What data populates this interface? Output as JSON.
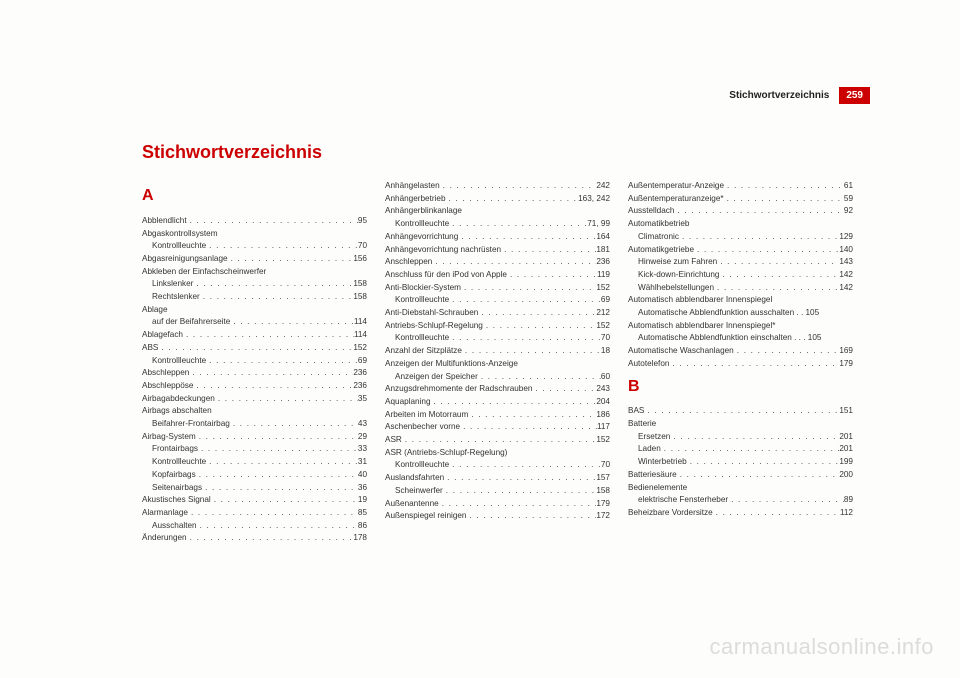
{
  "header": {
    "title": "Stichwortverzeichnis",
    "pageNumber": "259"
  },
  "mainTitle": "Stichwortverzeichnis",
  "watermark": "carmanualsonline.info",
  "columns": [
    {
      "blocks": [
        {
          "type": "letter",
          "text": "A"
        },
        {
          "type": "entries",
          "items": [
            {
              "t": "Abblendlicht",
              "p": "95"
            },
            {
              "t": "Abgaskontrollsystem",
              "nopage": true
            },
            {
              "t": "Kontrollleuchte",
              "p": "70",
              "indent": true
            },
            {
              "t": "Abgasreinigungsanlage",
              "p": "156"
            },
            {
              "t": "Abkleben der Einfachscheinwerfer",
              "nopage": true
            },
            {
              "t": "Linkslenker",
              "p": "158",
              "indent": true
            },
            {
              "t": "Rechtslenker",
              "p": "158",
              "indent": true
            },
            {
              "t": "Ablage",
              "nopage": true
            },
            {
              "t": "auf der Beifahrerseite",
              "p": "114",
              "indent": true
            },
            {
              "t": "Ablagefach",
              "p": "114"
            },
            {
              "t": "ABS",
              "p": "152"
            },
            {
              "t": "Kontrollleuchte",
              "p": "69",
              "indent": true
            },
            {
              "t": "Abschleppen",
              "p": "236"
            },
            {
              "t": "Abschleppöse",
              "p": "236"
            },
            {
              "t": "Airbagabdeckungen",
              "p": "35"
            },
            {
              "t": "Airbags abschalten",
              "nopage": true
            },
            {
              "t": "Beifahrer-Frontairbag",
              "p": "43",
              "indent": true
            },
            {
              "t": "Airbag-System",
              "p": "29"
            },
            {
              "t": "Frontairbags",
              "p": "33",
              "indent": true
            },
            {
              "t": "Kontrollleuchte",
              "p": "31",
              "indent": true
            },
            {
              "t": "Kopfairbags",
              "p": "40",
              "indent": true
            },
            {
              "t": "Seitenairbags",
              "p": "36",
              "indent": true
            },
            {
              "t": "Akustisches Signal",
              "p": "19"
            },
            {
              "t": "Alarmanlage",
              "p": "85"
            },
            {
              "t": "Ausschalten",
              "p": "86",
              "indent": true
            },
            {
              "t": "Änderungen",
              "p": "178"
            }
          ]
        }
      ]
    },
    {
      "blocks": [
        {
          "type": "entries",
          "items": [
            {
              "t": "Anhängelasten",
              "p": "242"
            },
            {
              "t": "Anhängerbetrieb",
              "p": "163, 242"
            },
            {
              "t": "Anhängerblinkanlage",
              "nopage": true
            },
            {
              "t": "Kontrollleuchte",
              "p": "71, 99",
              "indent": true
            },
            {
              "t": "Anhängevorrichtung",
              "p": "164"
            },
            {
              "t": "Anhängevorrichtung nachrüsten",
              "p": "181"
            },
            {
              "t": "Anschleppen",
              "p": "236"
            },
            {
              "t": "Anschluss für den iPod von Apple",
              "p": "119"
            },
            {
              "t": "Anti-Blockier-System",
              "p": "152"
            },
            {
              "t": "Kontrollleuchte",
              "p": "69",
              "indent": true
            },
            {
              "t": "Anti-Diebstahl-Schrauben",
              "p": "212"
            },
            {
              "t": "Antriebs-Schlupf-Regelung",
              "p": "152"
            },
            {
              "t": "Kontrollleuchte",
              "p": "70",
              "indent": true
            },
            {
              "t": "Anzahl der Sitzplätze",
              "p": "18"
            },
            {
              "t": "Anzeigen der Multifunktions-Anzeige",
              "nopage": true
            },
            {
              "t": "Anzeigen der Speicher",
              "p": "60",
              "indent": true
            },
            {
              "t": "Anzugsdrehmomente der Radschrauben",
              "p": "243"
            },
            {
              "t": "Aquaplaning",
              "p": "204"
            },
            {
              "t": "Arbeiten im Motorraum",
              "p": "186"
            },
            {
              "t": "Aschenbecher vorne",
              "p": "117"
            },
            {
              "t": "ASR",
              "p": "152"
            },
            {
              "t": "ASR (Antriebs-Schlupf-Regelung)",
              "nopage": true
            },
            {
              "t": "Kontrollleuchte",
              "p": "70",
              "indent": true
            },
            {
              "t": "Auslandsfahrten",
              "p": "157"
            },
            {
              "t": "Scheinwerfer",
              "p": "158",
              "indent": true
            },
            {
              "t": "Außenantenne",
              "p": "179"
            },
            {
              "t": "Außenspiegel reinigen",
              "p": "172"
            }
          ]
        }
      ]
    },
    {
      "blocks": [
        {
          "type": "entries",
          "items": [
            {
              "t": "Außentemperatur-Anzeige",
              "p": "61"
            },
            {
              "t": "Außentemperaturanzeige*",
              "p": "59"
            },
            {
              "t": "Ausstelldach",
              "p": "92"
            },
            {
              "t": "Automatikbetrieb",
              "nopage": true
            },
            {
              "t": "Climatronic",
              "p": "129",
              "indent": true
            },
            {
              "t": "Automatikgetriebe",
              "p": "140"
            },
            {
              "t": "Hinweise zum Fahren",
              "p": "143",
              "indent": true
            },
            {
              "t": "Kick-down-Einrichtung",
              "p": "142",
              "indent": true
            },
            {
              "t": "Wählhebelstellungen",
              "p": "142",
              "indent": true
            },
            {
              "t": "Automatisch abblendbarer Innenspiegel",
              "nopage": true
            },
            {
              "t": "Automatische Abblendfunktion ausschalten  . . 105",
              "nopage": true,
              "indent": true
            },
            {
              "t": "Automatisch abblendbarer Innenspiegel*",
              "nopage": true
            },
            {
              "t": "Automatische Abblendfunktion einschalten . . . 105",
              "nopage": true,
              "indent": true
            },
            {
              "t": "Automatische Waschanlagen",
              "p": "169"
            },
            {
              "t": "Autotelefon",
              "p": "179"
            }
          ]
        },
        {
          "type": "letter",
          "text": "B"
        },
        {
          "type": "entries",
          "items": [
            {
              "t": "BAS",
              "p": "151"
            },
            {
              "t": "Batterie",
              "nopage": true
            },
            {
              "t": "Ersetzen",
              "p": "201",
              "indent": true
            },
            {
              "t": "Laden",
              "p": "201",
              "indent": true
            },
            {
              "t": "Winterbetrieb",
              "p": "199",
              "indent": true
            },
            {
              "t": "Batteriesäure",
              "p": "200"
            },
            {
              "t": "Bedienelemente",
              "nopage": true
            },
            {
              "t": "elektrische Fensterheber",
              "p": "89",
              "indent": true
            },
            {
              "t": "Beheizbare Vordersitze",
              "p": "112"
            }
          ]
        }
      ]
    }
  ]
}
